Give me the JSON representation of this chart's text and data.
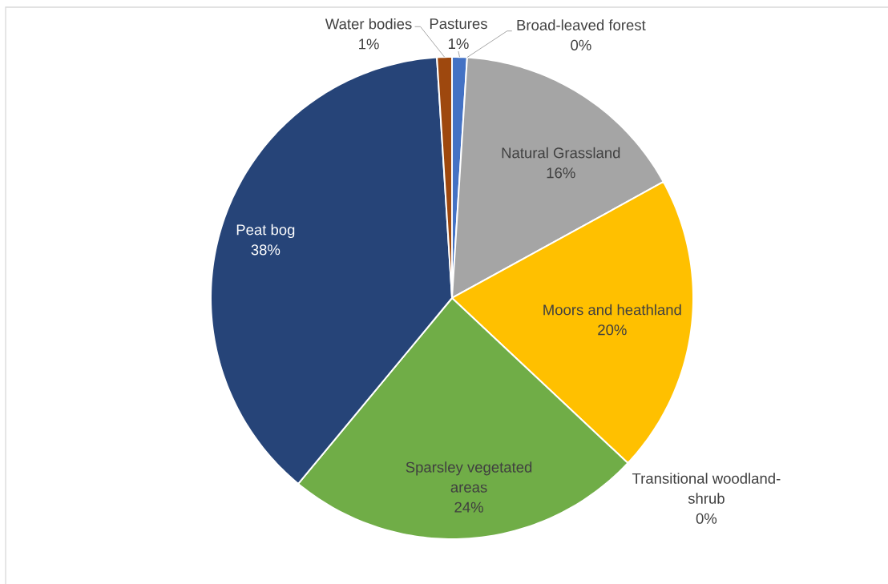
{
  "chart_data": {
    "type": "pie",
    "categories": [
      "Pastures",
      "Broad-leaved forest",
      "Natural Grassland",
      "Moors and heathland",
      "Transitional woodland-shrub",
      "Sparsley vegetated areas",
      "Peat bog",
      "Water bodies"
    ],
    "values": [
      1,
      0,
      16,
      20,
      0,
      24,
      38,
      1
    ],
    "colors": [
      "#4472c4",
      "#ed7d31",
      "#a5a5a5",
      "#ffc000",
      "#5b9bd5",
      "#70ad47",
      "#264478",
      "#9e480e"
    ],
    "value_labels": [
      "1%",
      "0%",
      "16%",
      "20%",
      "0%",
      "24%",
      "38%",
      "1%"
    ]
  }
}
